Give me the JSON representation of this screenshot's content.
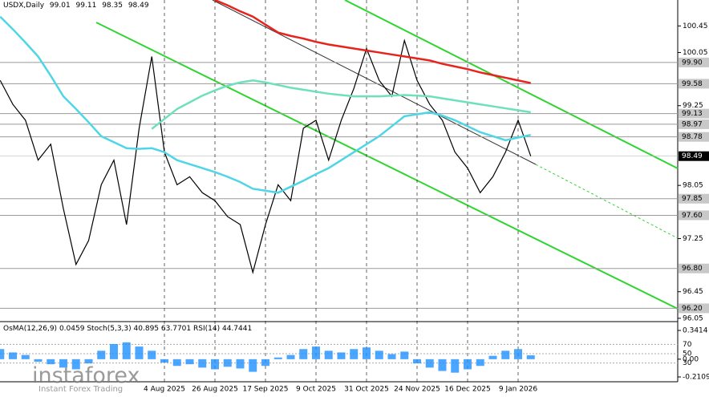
{
  "chart_data": {
    "type": "line",
    "title": "USDX,Daily",
    "ohlc": [
      99.01,
      99.11,
      98.35,
      98.49
    ],
    "categories": [
      null,
      null,
      null,
      null,
      null,
      null,
      null,
      null,
      null,
      null,
      null,
      null,
      null,
      "4 Aug 2025",
      null,
      null,
      null,
      "26 Aug 2025",
      null,
      null,
      null,
      "17 Sep 2025",
      null,
      null,
      null,
      "9 Oct 2025",
      null,
      null,
      null,
      "31 Oct 2025",
      null,
      null,
      null,
      "24 Nov 2025",
      null,
      null,
      null,
      "16 Dec 2025",
      null,
      null,
      null,
      "9 Jan 2026",
      null
    ],
    "series": [
      {
        "color": "#000000",
        "values": [
          99.63,
          99.27,
          99.03,
          98.43,
          98.67,
          97.7,
          96.86,
          97.22,
          98.06,
          98.43,
          97.46,
          98.91,
          99.99,
          98.55,
          98.06,
          98.18,
          97.94,
          97.82,
          97.58,
          97.46,
          96.74,
          97.46,
          98.06,
          97.82,
          98.91,
          99.03,
          98.43,
          99.03,
          99.51,
          100.11,
          99.63,
          99.39,
          100.23,
          99.63,
          99.27,
          99.03,
          98.55,
          98.31,
          97.94,
          98.18,
          98.55,
          99.03,
          98.49
        ]
      },
      {
        "color": "#4fd6e6",
        "values": [
          100.59,
          100.4,
          100.2,
          99.99,
          99.7,
          99.39,
          99.2,
          99.0,
          98.79,
          98.7,
          98.61,
          98.6,
          98.61,
          98.55,
          98.43,
          98.37,
          98.31,
          98.25,
          98.18,
          98.1,
          98.0,
          97.97,
          97.94,
          98.03,
          98.12,
          98.22,
          98.31,
          98.43,
          98.55,
          98.67,
          98.79,
          98.94,
          99.09,
          99.12,
          99.15,
          99.1,
          99.03,
          98.94,
          98.85,
          98.79,
          98.73,
          98.77,
          98.81
        ]
      },
      {
        "color": "#6ee0bd",
        "values": [
          null,
          null,
          null,
          null,
          null,
          null,
          null,
          null,
          null,
          null,
          null,
          null,
          98.9,
          99.05,
          99.2,
          99.3,
          99.4,
          99.48,
          99.55,
          99.6,
          99.63,
          99.6,
          99.56,
          99.52,
          99.49,
          99.46,
          99.43,
          99.41,
          99.39,
          99.39,
          99.39,
          99.4,
          99.41,
          99.4,
          99.39,
          99.36,
          99.33,
          99.3,
          99.27,
          99.24,
          99.21,
          99.18,
          99.15
        ]
      },
      {
        "color": "#e8231d",
        "values": [
          null,
          null,
          null,
          null,
          null,
          null,
          null,
          null,
          null,
          null,
          null,
          null,
          null,
          null,
          null,
          null,
          null,
          100.84,
          100.76,
          100.67,
          100.59,
          100.47,
          100.35,
          100.3,
          100.26,
          100.21,
          100.17,
          100.14,
          100.11,
          100.08,
          100.05,
          100.02,
          99.99,
          99.96,
          99.93,
          99.88,
          99.84,
          99.8,
          99.75,
          99.71,
          99.67,
          99.63,
          99.59
        ]
      }
    ],
    "ylim": [
      96.0,
      100.84
    ],
    "yticks": [
      100.45,
      100.05,
      99.25,
      98.05,
      97.25,
      96.45,
      96.05
    ],
    "levels": [
      {
        "value": 99.9,
        "label": "99.90"
      },
      99.58,
      99.13,
      98.97,
      98.78,
      97.85,
      {
        "value": 97.6,
        "label": "97.60"
      },
      {
        "value": 96.8,
        "label": "96.80"
      },
      {
        "value": 96.2,
        "label": "96.20"
      }
    ],
    "last_price": 98.49,
    "indicators": {
      "osma_label": "OsMA(12,26,9)",
      "osma_value": 0.0459,
      "stoch_label": "Stoch(5,3,3)",
      "stoch_values": [
        40.895,
        63.7701
      ],
      "rsi_label": "RSI(14)",
      "rsi_value": 44.7441,
      "osma_color": "#1e90ff",
      "osma": [
        0.12,
        0.08,
        0.05,
        -0.03,
        -0.06,
        -0.1,
        -0.12,
        -0.05,
        0.1,
        0.18,
        0.2,
        0.15,
        0.1,
        -0.04,
        -0.08,
        -0.06,
        -0.1,
        -0.12,
        -0.09,
        -0.11,
        -0.15,
        -0.08,
        0.02,
        0.05,
        0.12,
        0.15,
        0.1,
        0.08,
        0.12,
        0.14,
        0.1,
        0.06,
        0.09,
        -0.05,
        -0.1,
        -0.14,
        -0.16,
        -0.12,
        -0.08,
        0.04,
        0.1,
        0.12,
        0.0459
      ],
      "ylim": [
        -0.2109,
        0.3414
      ],
      "yticks": [
        0.3414,
        {
          "value": 0,
          "label": "0.00"
        },
        -0.2109
      ],
      "levels": [
        70,
        50,
        30
      ]
    }
  },
  "watermark": {
    "brand": "instaforex",
    "tagline": "Instant Forex Trading"
  }
}
